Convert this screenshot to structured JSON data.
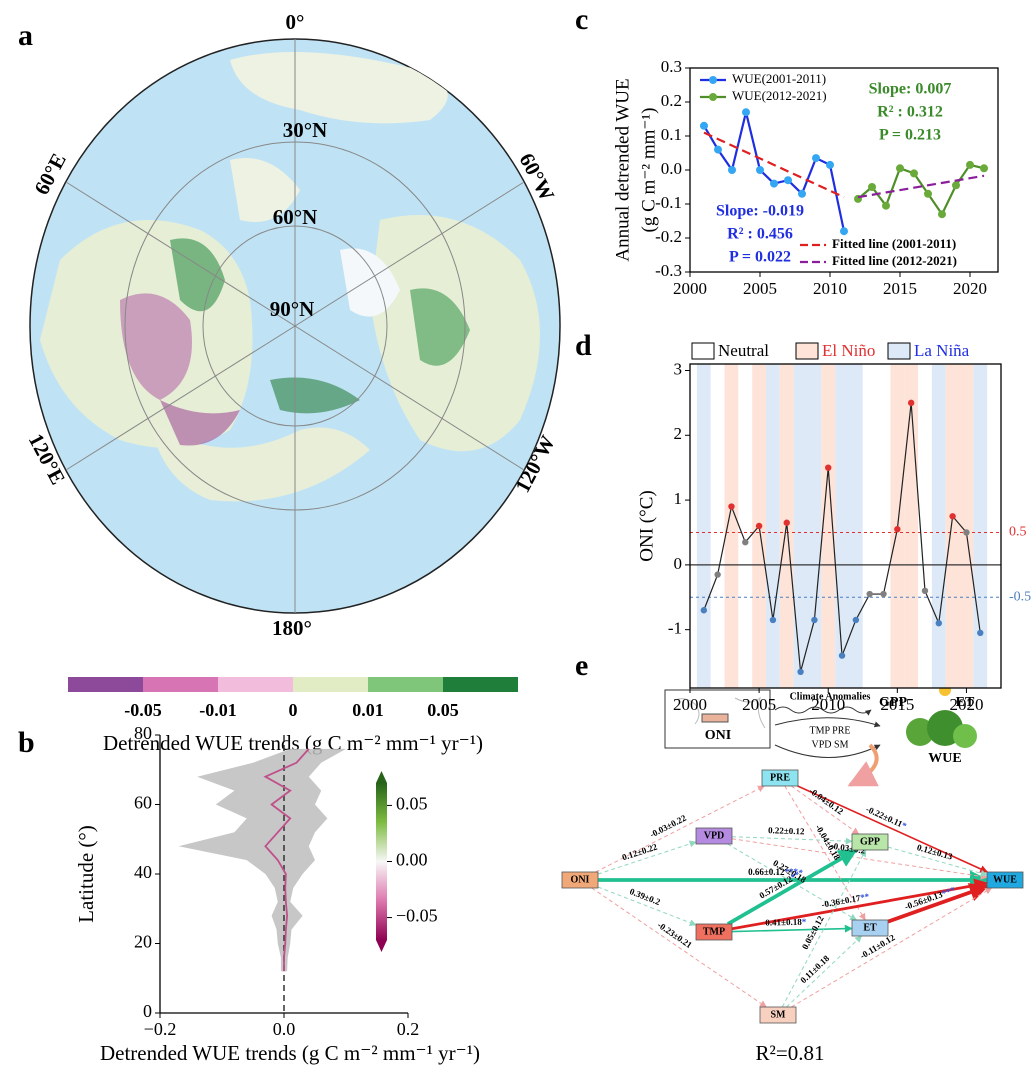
{
  "panels": [
    "a",
    "b",
    "c",
    "d",
    "e"
  ],
  "map": {
    "labels": [
      "0°",
      "30°N",
      "60°N",
      "90°N",
      "60°W",
      "120°W",
      "180°",
      "120°E",
      "60°E"
    ],
    "colorbar": {
      "colors": [
        "#8e4a9a",
        "#d774b4",
        "#f2bcdc",
        "#e2ecc4",
        "#7fc67a",
        "#1f7f3a"
      ],
      "ticks": [
        "-0.05",
        "-0.01",
        "0",
        "0.01",
        "0.05"
      ],
      "label": "Detrended WUE trends (g C m⁻² mm⁻¹ yr⁻¹)"
    }
  },
  "chart_data": [
    {
      "type": "line",
      "y_label": [
        "Annual detrended WUE",
        "(g C m⁻² mm⁻¹)"
      ],
      "xlim": [
        2000,
        2022
      ],
      "ylim": [
        -0.3,
        0.3
      ],
      "xticks": [
        2000,
        2005,
        2010,
        2015,
        2020
      ],
      "yticks": [
        -0.3,
        -0.2,
        -0.1,
        {
          "value": 0,
          "label": "0.0"
        },
        0.1,
        0.2,
        0.3
      ],
      "series": [
        {
          "name": "WUE(2001-2011)",
          "color": "#1e2ee0",
          "marker_color": "#35a6f2",
          "legend": "upper left",
          "x": [
            2001,
            2002,
            2003,
            2004,
            2005,
            2006,
            2007,
            2008,
            2009,
            2010,
            2011
          ],
          "values": [
            0.13,
            0.06,
            0.0,
            0.17,
            0.0,
            -0.04,
            -0.03,
            -0.07,
            0.035,
            0.015,
            -0.18
          ]
        },
        {
          "name": "WUE(2012-2021)",
          "color": "#4f8f2a",
          "marker_color": "#6aaa3a",
          "legend": "upper left",
          "x": [
            2012,
            2013,
            2014,
            2015,
            2016,
            2017,
            2018,
            2019,
            2020,
            2021
          ],
          "values": [
            -0.085,
            -0.05,
            -0.105,
            0.005,
            -0.01,
            -0.07,
            -0.13,
            -0.045,
            0.015,
            0.005
          ]
        },
        {
          "name": "Fitted line (2001-2011)",
          "color": "#e02020",
          "dashed": true,
          "legend": "lower right",
          "x": [
            2001,
            2011
          ],
          "values": [
            0.11,
            -0.08
          ]
        },
        {
          "name": "Fitted line (2012-2021)",
          "color": "#8b1e9a",
          "dashed": true,
          "legend": "lower right",
          "x": [
            2012,
            2021
          ],
          "values": [
            -0.08,
            -0.017
          ]
        }
      ],
      "annotations": [
        {
          "text": "Slope: 0.007",
          "color": "#3a8a2a"
        },
        {
          "text": "R² : 0.312",
          "color": "#3a8a2a"
        },
        {
          "text": "P = 0.213",
          "color": "#3a8a2a"
        },
        {
          "text": "Slope: -0.019",
          "color": "#1e2ee0"
        },
        {
          "text": "R² : 0.456",
          "color": "#1e2ee0"
        },
        {
          "text": "P = 0.022",
          "color": "#1e2ee0"
        }
      ]
    },
    {
      "type": "oni",
      "y_label": "ONI (°C)",
      "xlim": [
        2000,
        2022.5
      ],
      "ylim": [
        -1.9,
        3.1
      ],
      "xticks": [
        2000,
        2005,
        2010,
        2015,
        2020
      ],
      "yticks": [
        -1,
        0,
        1,
        2,
        3
      ],
      "x": [
        2001,
        2002,
        2003,
        2004,
        2005,
        2006,
        2007,
        2008,
        2009,
        2010,
        2011,
        2012,
        2013,
        2014,
        2015,
        2016,
        2017,
        2018,
        2019,
        2020,
        2021
      ],
      "values": [
        -0.7,
        -0.15,
        0.9,
        0.35,
        0.6,
        -0.85,
        0.65,
        -1.65,
        -0.85,
        1.5,
        -1.4,
        -0.85,
        -0.45,
        -0.45,
        0.55,
        2.5,
        -0.4,
        -0.9,
        0.75,
        0.5,
        -1.05
      ],
      "phases": [
        "La Niña",
        "Neutral",
        "El Niño",
        "Neutral",
        "El Niño",
        "La Niña",
        "El Niño",
        "La Niña",
        "La Niña",
        "El Niño",
        "La Niña",
        "La Niña",
        "Neutral",
        "Neutral",
        "El Niño",
        "El Niño",
        "Neutral",
        "La Niña",
        "El Niño",
        "El Niño",
        "La Niña"
      ],
      "phase_legend": [
        {
          "name": "Neutral",
          "color": "#ffffff",
          "text_color": "#000000"
        },
        {
          "name": "El Niño",
          "color": "#fde3d8",
          "text_color": "#e03030"
        },
        {
          "name": "La Niña",
          "color": "#dde9f7",
          "text_color": "#2030e0"
        }
      ],
      "thresholds": [
        {
          "value": 0.5,
          "color": "#e03030"
        },
        {
          "value": -0.5,
          "color": "#4a7fc0"
        }
      ],
      "color": "#222222",
      "neutral_color": "#808080"
    },
    {
      "type": "profile",
      "x_label": "Detrended WUE trends (g C m⁻² mm⁻¹ yr⁻¹)",
      "y_label": "Latitude (°)",
      "xlim": [
        -0.2,
        0.2
      ],
      "ylim": [
        0,
        80
      ],
      "xticks": [
        {
          "value": -0.2,
          "label": "−0.2"
        },
        {
          "value": 0,
          "label": "0.0"
        },
        0.2
      ],
      "yticks": [
        0,
        20,
        40,
        60,
        80
      ],
      "y": [
        12,
        16,
        20,
        24,
        28,
        32,
        36,
        40,
        44,
        48,
        52,
        56,
        60,
        64,
        68,
        72,
        76
      ],
      "values": [
        0,
        0,
        0.002,
        0.003,
        0.005,
        0.003,
        0.002,
        0.003,
        -0.01,
        -0.03,
        -0.01,
        0.01,
        -0.02,
        0.01,
        -0.03,
        0.02,
        0.04
      ],
      "lower": [
        -0.005,
        -0.005,
        -0.01,
        -0.012,
        -0.02,
        -0.01,
        -0.015,
        -0.03,
        -0.06,
        -0.17,
        -0.08,
        -0.06,
        -0.11,
        -0.08,
        -0.14,
        -0.05,
        0.01
      ],
      "upper": [
        0.005,
        0.006,
        0.01,
        0.012,
        0.03,
        0.01,
        0.015,
        0.03,
        0.05,
        0.04,
        0.05,
        0.07,
        0.05,
        0.06,
        0.04,
        0.06,
        0.1
      ],
      "band_color": "#bdbdbd",
      "clim": [
        -0.07,
        0.07
      ],
      "colorbar_colors": [
        "#8e0152",
        "#de77ae",
        "#f7f7f7",
        "#7fbc41",
        "#276419"
      ],
      "colorbar_ticks": [
        {
          "value": 0.05,
          "label": "0.05"
        },
        {
          "value": 0,
          "label": "0.00"
        },
        {
          "value": -0.05,
          "label": "−0.05"
        }
      ]
    }
  ],
  "diagram": {
    "schematic": {
      "box_label": "ONI",
      "arrow_label": "Climate Anomalies",
      "drivers": [
        "TMP PRE",
        "VPD SM"
      ],
      "outputs": [
        "GPP",
        "ET"
      ],
      "target": "WUE"
    },
    "nodes": [
      {
        "label": "PRE",
        "color": "#8de4f0"
      },
      {
        "label": "VPD",
        "color": "#b48be0"
      },
      {
        "label": "GPP",
        "color": "#b8e6a8"
      },
      {
        "label": "ONI",
        "color": "#f0a878"
      },
      {
        "label": "TMP",
        "color": "#f07060"
      },
      {
        "label": "ET",
        "color": "#a8d0f0"
      },
      {
        "label": "WUE",
        "color": "#20a8e0"
      },
      {
        "label": "SM",
        "color": "#f8d0c0"
      }
    ],
    "edges": [
      {
        "from": 3,
        "to": 0,
        "label": "-0.03±0.22",
        "sig": ""
      },
      {
        "from": 3,
        "to": 1,
        "label": "0.12±0.22",
        "sig": ""
      },
      {
        "from": 3,
        "to": 6,
        "label": "0.66±0.12",
        "sig": "***"
      },
      {
        "from": 3,
        "to": 4,
        "label": "0.39±0.2",
        "sig": ""
      },
      {
        "from": 3,
        "to": 7,
        "label": "-0.23±0.21",
        "sig": ""
      },
      {
        "from": 0,
        "to": 2,
        "label": "-0.04±0.12",
        "sig": ""
      },
      {
        "from": 0,
        "to": 5,
        "label": "-0.04±0.18",
        "sig": ""
      },
      {
        "from": 0,
        "to": 6,
        "label": "-0.22±0.11",
        "sig": "*"
      },
      {
        "from": 1,
        "to": 2,
        "label": "0.22±0.12",
        "sig": ""
      },
      {
        "from": 1,
        "to": 5,
        "label": "0.27±0.18",
        "sig": ""
      },
      {
        "from": 1,
        "to": 6,
        "label": "-0.03±0.2",
        "sig": ""
      },
      {
        "from": 2,
        "to": 6,
        "label": "0.12±0.13",
        "sig": ""
      },
      {
        "from": 4,
        "to": 2,
        "label": "0.57±0.12",
        "sig": "***"
      },
      {
        "from": 4,
        "to": 5,
        "label": "0.41±0.18",
        "sig": "*"
      },
      {
        "from": 4,
        "to": 6,
        "label": "-0.36±0.17",
        "sig": "**"
      },
      {
        "from": 5,
        "to": 6,
        "label": "-0.56±0.13",
        "sig": "***"
      },
      {
        "from": 7,
        "to": 2,
        "label": "0.05±0.12",
        "sig": ""
      },
      {
        "from": 7,
        "to": 5,
        "label": "0.11±0.18",
        "sig": ""
      },
      {
        "from": 7,
        "to": 6,
        "label": "-0.11±0.12",
        "sig": ""
      }
    ],
    "r2": "R²=0.81"
  }
}
